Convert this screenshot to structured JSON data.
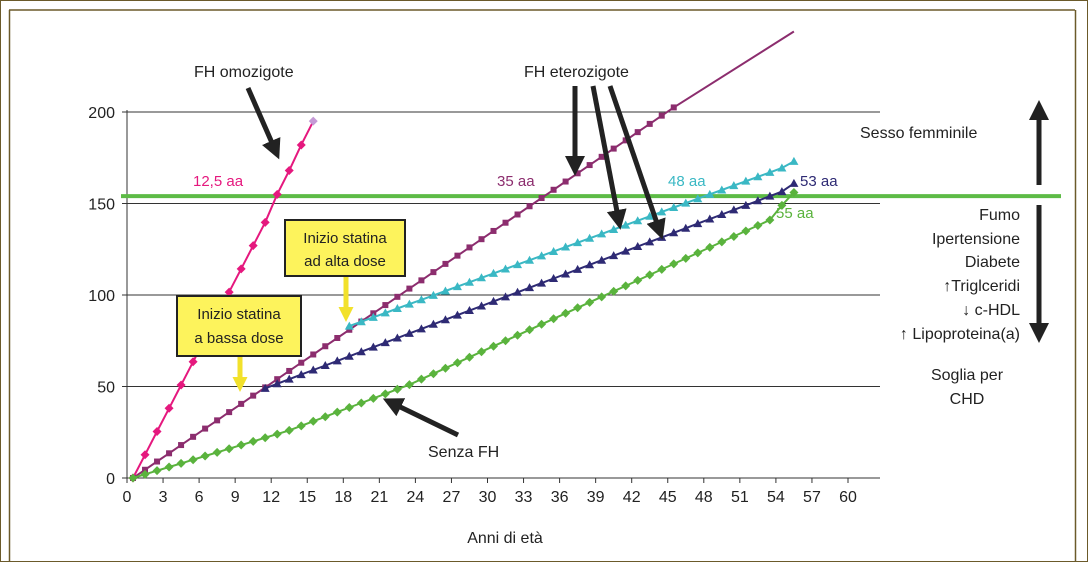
{
  "chart_data": {
    "type": "line",
    "xlabel": "Anni di età",
    "ylabel": "",
    "xlim": [
      0,
      63
    ],
    "ylim": [
      0,
      200
    ],
    "x_ticks": [
      0,
      3,
      6,
      9,
      12,
      15,
      18,
      21,
      24,
      27,
      30,
      33,
      36,
      39,
      42,
      45,
      48,
      51,
      54,
      57,
      60
    ],
    "y_ticks": [
      0,
      50,
      100,
      150,
      200
    ],
    "grid": "horizontal",
    "threshold": {
      "value": 154,
      "color": "#5dbb46"
    },
    "series": [
      {
        "key": "omo",
        "color": "#e5187e",
        "marker": "diamond",
        "x": [
          0.5,
          1.5,
          2.5,
          3.5,
          4.5,
          5.5,
          6.5,
          7.5,
          8.5,
          9.5,
          10.5,
          11.5,
          12.5,
          13.5,
          14.5,
          15.5
        ],
        "values": [
          0,
          12.7,
          25.4,
          38.1,
          50.8,
          63.5,
          76.2,
          88.9,
          101.6,
          114.3,
          127,
          139.7,
          155,
          168,
          182,
          195
        ]
      },
      {
        "key": "ete35",
        "color": "#8c2d6e",
        "marker": "square",
        "x": [
          0.5,
          1.5,
          2.5,
          3.5,
          4.5,
          5.5,
          6.5,
          7.5,
          8.5,
          9.5,
          10.5,
          11.5,
          12.5,
          13.5,
          14.5,
          15.5,
          16.5,
          17.5,
          18.5,
          19.5,
          20.5,
          21.5,
          22.5,
          23.5,
          24.5,
          25.5,
          26.5,
          27.5,
          28.5,
          29.5,
          30.5,
          31.5,
          32.5,
          33.5,
          34.5,
          35.5,
          36.5,
          37.5,
          38.5,
          39.5,
          40.5,
          41.5,
          42.5,
          43.5,
          44.5,
          45.5,
          55.5
        ],
        "values": [
          0,
          4.5,
          9,
          13.5,
          18,
          22.5,
          27,
          31.5,
          36,
          40.5,
          45,
          49.5,
          54,
          58.5,
          63,
          67.5,
          72,
          76.5,
          81,
          85.5,
          90,
          94.5,
          99,
          103.5,
          108,
          112.5,
          117,
          121.5,
          126,
          130.5,
          135,
          139.5,
          144,
          148.5,
          153,
          157.5,
          162,
          166.5,
          171,
          175.5,
          180,
          184.5,
          189,
          193.5,
          198,
          202.5,
          244
        ]
      },
      {
        "key": "ete48",
        "color": "#3ab8c4",
        "marker": "triangle",
        "x": [
          18.5,
          19.5,
          20.5,
          21.5,
          22.5,
          23.5,
          24.5,
          25.5,
          26.5,
          27.5,
          28.5,
          29.5,
          30.5,
          31.5,
          32.5,
          33.5,
          34.5,
          35.5,
          36.5,
          37.5,
          38.5,
          39.5,
          40.5,
          41.5,
          42.5,
          43.5,
          44.5,
          45.5,
          46.5,
          47.5,
          48.5,
          49.5,
          50.5,
          51.5,
          52.5,
          53.5,
          54.5,
          55.5
        ],
        "values": [
          83,
          85.4,
          87.8,
          90.2,
          92.6,
          95,
          97.4,
          99.8,
          102.2,
          104.6,
          107,
          109.4,
          111.8,
          114.2,
          116.6,
          119,
          121.4,
          123.8,
          126.2,
          128.6,
          131,
          133.4,
          135.8,
          138.2,
          140.6,
          143,
          145.4,
          147.8,
          150.2,
          152.6,
          155,
          157.4,
          159.8,
          162.2,
          164.6,
          167,
          169.4,
          173
        ]
      },
      {
        "key": "ete53",
        "color": "#2e2a74",
        "marker": "triangle",
        "x": [
          11.5,
          12.5,
          13.5,
          14.5,
          15.5,
          16.5,
          17.5,
          18.5,
          19.5,
          20.5,
          21.5,
          22.5,
          23.5,
          24.5,
          25.5,
          26.5,
          27.5,
          28.5,
          29.5,
          30.5,
          31.5,
          32.5,
          33.5,
          34.5,
          35.5,
          36.5,
          37.5,
          38.5,
          39.5,
          40.5,
          41.5,
          42.5,
          43.5,
          44.5,
          45.5,
          46.5,
          47.5,
          48.5,
          49.5,
          50.5,
          51.5,
          52.5,
          53.5,
          54.5,
          55.5
        ],
        "values": [
          49,
          51.5,
          54,
          56.5,
          59,
          61.5,
          64,
          66.5,
          69,
          71.5,
          74,
          76.5,
          79,
          81.5,
          84,
          86.5,
          89,
          91.5,
          94,
          96.5,
          99,
          101.5,
          104,
          106.5,
          109,
          111.5,
          114,
          116.5,
          119,
          121.5,
          124,
          126.5,
          129,
          131.5,
          134,
          136.5,
          139,
          141.5,
          144,
          146.5,
          149,
          151.5,
          154,
          156.5,
          161
        ]
      },
      {
        "key": "senza",
        "color": "#5ab33d",
        "marker": "diamond",
        "x": [
          0.5,
          1.5,
          2.5,
          3.5,
          4.5,
          5.5,
          6.5,
          7.5,
          8.5,
          9.5,
          10.5,
          11.5,
          12.5,
          13.5,
          14.5,
          15.5,
          16.5,
          17.5,
          18.5,
          19.5,
          20.5,
          21.5,
          22.5,
          23.5,
          24.5,
          25.5,
          26.5,
          27.5,
          28.5,
          29.5,
          30.5,
          31.5,
          32.5,
          33.5,
          34.5,
          35.5,
          36.5,
          37.5,
          38.5,
          39.5,
          40.5,
          41.5,
          42.5,
          43.5,
          44.5,
          45.5,
          46.5,
          47.5,
          48.5,
          49.5,
          50.5,
          51.5,
          52.5,
          53.5,
          54.5,
          55.5
        ],
        "values": [
          0,
          2,
          4,
          6,
          8,
          10,
          12,
          14,
          16,
          18,
          20,
          22,
          24,
          26,
          28.5,
          31,
          33.5,
          36,
          38.5,
          41,
          43.5,
          46,
          48.5,
          51,
          54,
          57,
          60,
          63,
          66,
          69,
          72,
          75,
          78,
          81,
          84,
          87,
          90,
          93,
          96,
          99,
          102,
          105,
          108,
          111,
          114,
          117,
          120,
          123,
          126,
          129,
          132,
          135,
          138,
          141,
          149,
          156
        ]
      }
    ],
    "annotations": {
      "omo_label": "FH omozigote",
      "ete_label": "FH eterozigote",
      "senza_label": "Senza FH",
      "age_omo": "12,5 aa",
      "age_35": "35 aa",
      "age_48": "48 aa",
      "age_53": "53 aa",
      "age_55": "55 aa",
      "statina_bassa": [
        "Inizio statina",
        "a bassa dose"
      ],
      "statina_alta": [
        "Inizio statina",
        "ad alta dose"
      ],
      "sesso": "Sesso femminile",
      "fattori": [
        "Fumo",
        "Ipertensione",
        "Diabete",
        "↑Triglceridi",
        "↓ c-HDL",
        "↑ Lipoproteina(a)"
      ],
      "soglia": [
        "Soglia per",
        "CHD"
      ]
    }
  }
}
